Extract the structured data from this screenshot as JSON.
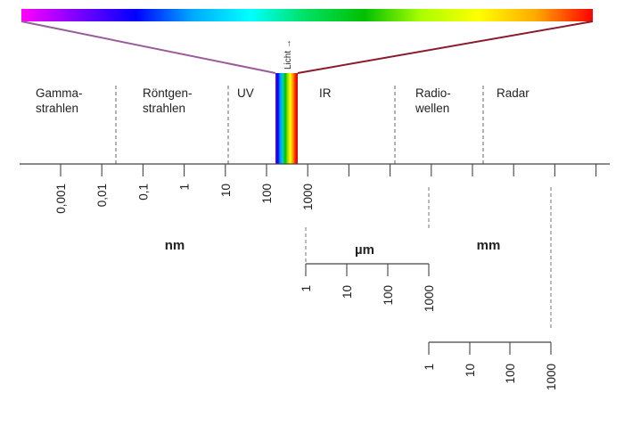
{
  "spectrum": {
    "colors": [
      "#ff00ff",
      "#7a00ff",
      "#0000ff",
      "#00aaff",
      "#00ffff",
      "#00e060",
      "#00c000",
      "#aaff00",
      "#ffff00",
      "#ffaa00",
      "#ff0000"
    ]
  },
  "visible_band": {
    "label": "Licht →",
    "colors": [
      "#7b00ff",
      "#0000ff",
      "#00a0ff",
      "#00d0b0",
      "#00c000",
      "#a0e000",
      "#ffff00",
      "#ffa000",
      "#ff2000",
      "#d00000"
    ]
  },
  "regions": [
    {
      "label": "Gamma-\nstrahlen"
    },
    {
      "label": "Röntgen-\nstrahlen"
    },
    {
      "label": "UV"
    },
    {
      "label": "IR"
    },
    {
      "label": "Radio-\nwellen"
    },
    {
      "label": "Radar"
    }
  ],
  "scales": {
    "nm": {
      "unit": "nm",
      "ticks": [
        "0,001",
        "0,01",
        "0,1",
        "1",
        "10",
        "100",
        "1000"
      ]
    },
    "um": {
      "unit": "µm",
      "ticks": [
        "1",
        "10",
        "100",
        "1000"
      ]
    },
    "mm": {
      "unit": "mm",
      "ticks": [
        "1",
        "10",
        "100",
        "1000"
      ]
    }
  },
  "colors": {
    "axis": "#444444",
    "dashed": "#666666",
    "violet_line": "#9a5b9a",
    "red_line": "#8b1a2a"
  }
}
